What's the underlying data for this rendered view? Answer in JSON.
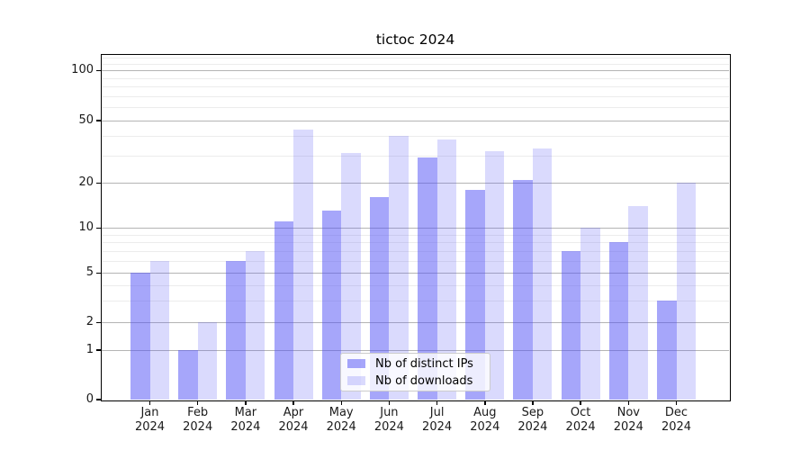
{
  "title": "tictoc 2024",
  "legend": {
    "position": "lower center",
    "items": [
      {
        "label": "Nb of distinct IPs",
        "color": "rgba(80,80,245,0.51)",
        "color_on_white": "#a9a9fa"
      },
      {
        "label": "Nb of downloads",
        "color": "rgba(80,80,245,0.21)",
        "color_on_white": "#dbdbf9"
      }
    ]
  },
  "chart_data": {
    "type": "bar",
    "title": "tictoc 2024",
    "categories": [
      "Jan 2024",
      "Feb 2024",
      "Mar 2024",
      "Apr 2024",
      "May 2024",
      "Jun 2024",
      "Jul 2024",
      "Aug 2024",
      "Sep 2024",
      "Oct 2024",
      "Nov 2024",
      "Dec 2024"
    ],
    "series": [
      {
        "name": "Nb of distinct IPs",
        "color": "rgba(80,80,245,0.51)",
        "values": [
          5,
          1,
          6,
          11,
          13,
          16,
          29,
          18,
          21,
          7,
          8,
          3
        ]
      },
      {
        "name": "Nb of downloads",
        "color": "rgba(80,80,245,0.21)",
        "values": [
          6,
          2,
          7,
          44,
          31,
          40,
          38,
          32,
          33,
          10,
          14,
          20
        ]
      }
    ],
    "xlabel": "",
    "ylabel": "",
    "yscale": "log-like with zero baseline",
    "y_ticks": [
      0,
      1,
      2,
      5,
      10,
      20,
      50,
      100
    ],
    "y_minor_ticks": [
      3,
      4,
      6,
      7,
      8,
      9,
      30,
      40,
      60,
      70,
      80,
      90,
      110,
      120
    ],
    "ylim": [
      0,
      125
    ],
    "grid": true,
    "legend_position": "lower center"
  }
}
